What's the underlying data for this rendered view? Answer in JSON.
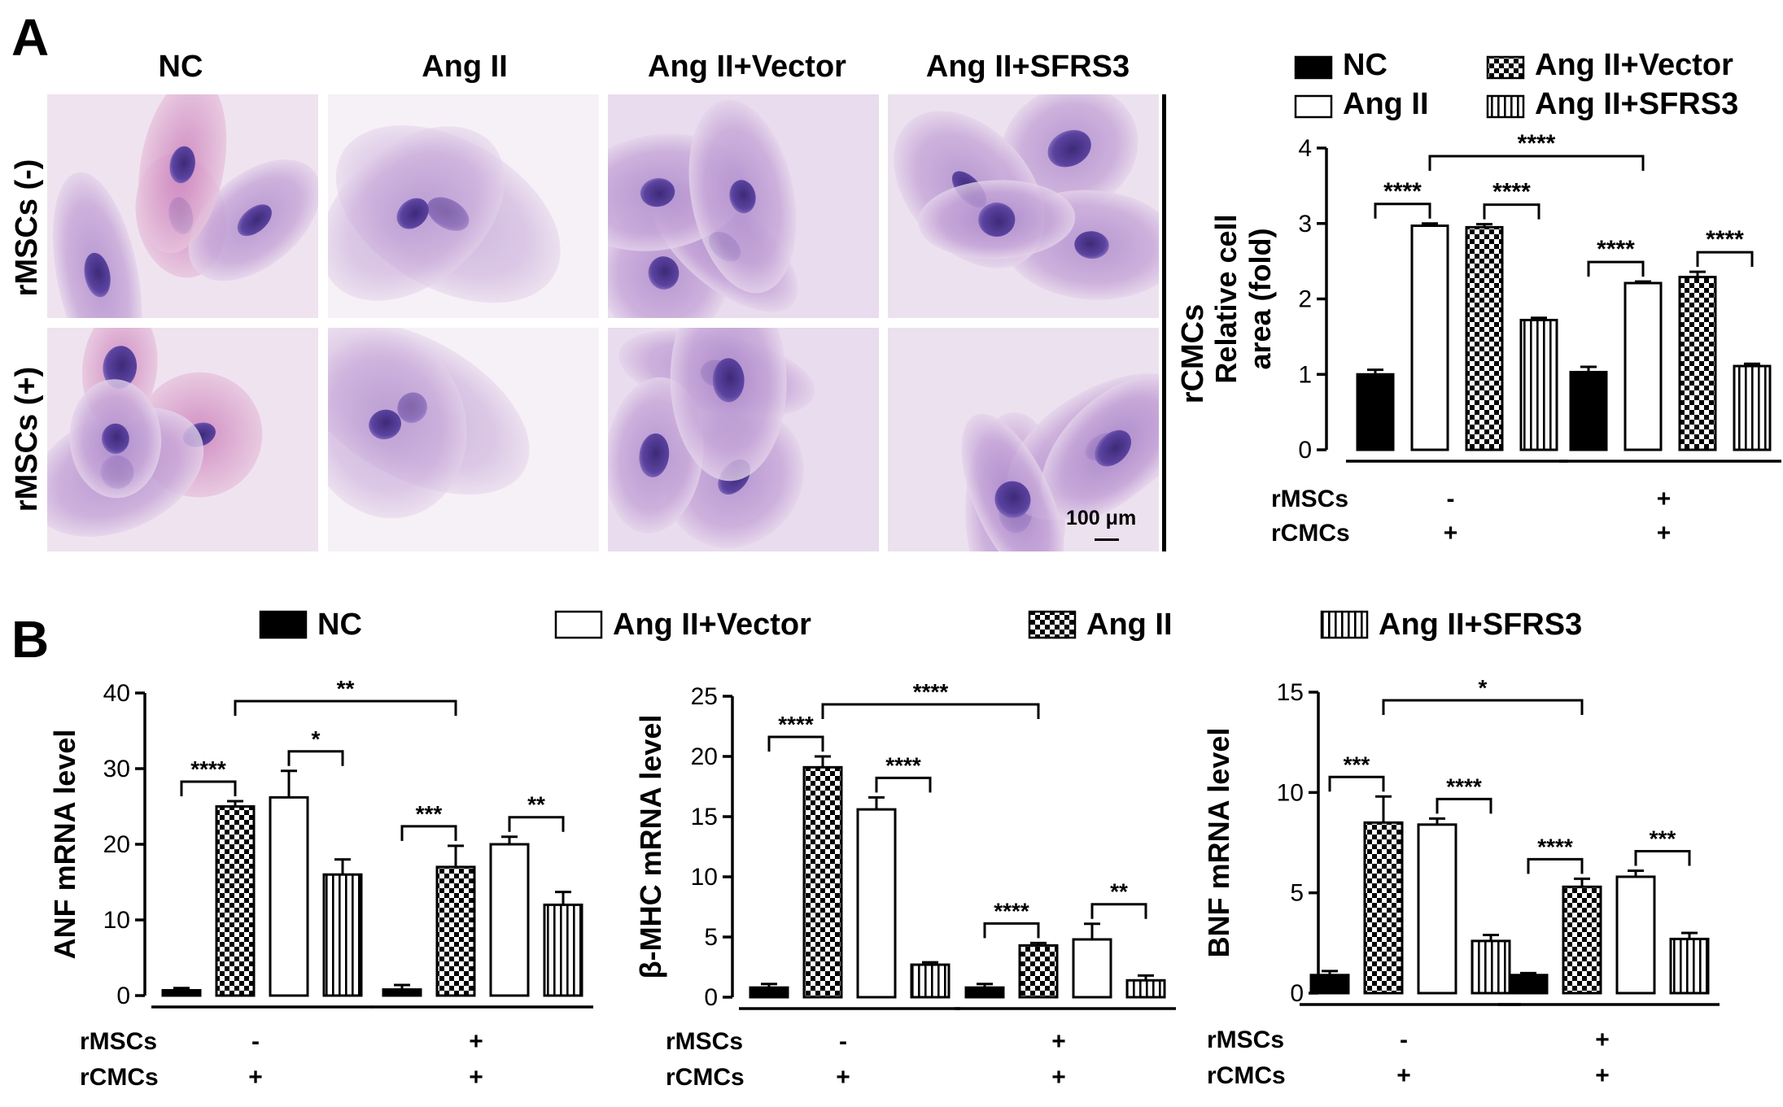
{
  "panel_a": {
    "letter": "A",
    "column_headers": [
      "NC",
      "Ang II",
      "Ang II+Vector",
      "Ang II+SFRS3"
    ],
    "row_labels": [
      "rMSCs (-)",
      "rMSCs (+)"
    ],
    "side_label": "rCMCs",
    "scale_bar": "100 μm"
  },
  "panel_b": {
    "letter": "B"
  },
  "colors": {
    "black": "#000000",
    "white": "#ffffff",
    "stain_bg": "#efe6f0",
    "stain_cell": "#b98fcc",
    "stain_nucleus": "#5a3a94"
  },
  "chart_data": [
    {
      "id": "area",
      "type": "bar",
      "ylabel": "Relative cell\narea (fold)",
      "ylim": [
        0,
        4
      ],
      "yticks": [
        0,
        1,
        2,
        3,
        4
      ],
      "legend": [
        "NC",
        "Ang II",
        "Ang II+Vector",
        "Ang II+SFRS3"
      ],
      "legend_patterns": [
        "black",
        "white",
        "checker",
        "vstripes"
      ],
      "bar_patterns": [
        "black",
        "white",
        "checker",
        "vstripes"
      ],
      "series": [
        {
          "values": [
            1.0,
            2.97,
            2.95,
            1.72
          ],
          "errors": [
            0.06,
            0.03,
            0.04,
            0.03
          ]
        },
        {
          "values": [
            1.03,
            2.21,
            2.29,
            1.11
          ],
          "errors": [
            0.07,
            0.02,
            0.07,
            0.03
          ]
        }
      ],
      "group_labels": {
        "rMSCs": [
          "-",
          "+"
        ],
        "rCMCs": [
          "+",
          "+"
        ]
      },
      "annotations": [
        {
          "from": [
            0,
            0
          ],
          "to": [
            0,
            1
          ],
          "label": "****"
        },
        {
          "from": [
            0,
            2
          ],
          "to": [
            0,
            3
          ],
          "label": "****"
        },
        {
          "from": [
            0,
            1
          ],
          "to": [
            1,
            1
          ],
          "label": "****"
        },
        {
          "from": [
            1,
            0
          ],
          "to": [
            1,
            1
          ],
          "label": "****"
        },
        {
          "from": [
            1,
            2
          ],
          "to": [
            1,
            3
          ],
          "label": "****"
        }
      ]
    },
    {
      "id": "anf",
      "type": "bar",
      "ylabel": "ANF mRNA level",
      "ylim": [
        0,
        40
      ],
      "yticks": [
        0,
        10,
        20,
        30,
        40
      ],
      "bar_patterns": [
        "black",
        "checker",
        "white",
        "vstripes"
      ],
      "series": [
        {
          "values": [
            0.7,
            25.0,
            26.2,
            16.0
          ],
          "errors": [
            0.3,
            0.7,
            3.5,
            2.0
          ]
        },
        {
          "values": [
            0.8,
            17.0,
            20.0,
            12.0
          ],
          "errors": [
            0.6,
            2.8,
            1.0,
            1.7
          ]
        }
      ],
      "group_labels": {
        "rMSCs": [
          "-",
          "+"
        ],
        "rCMCs": [
          "+",
          "+"
        ]
      },
      "annotations": [
        {
          "from": [
            0,
            0
          ],
          "to": [
            0,
            1
          ],
          "label": "****"
        },
        {
          "from": [
            0,
            2
          ],
          "to": [
            0,
            3
          ],
          "label": "*"
        },
        {
          "from": [
            0,
            1
          ],
          "to": [
            1,
            1
          ],
          "label": "**"
        },
        {
          "from": [
            1,
            0
          ],
          "to": [
            1,
            1
          ],
          "label": "***"
        },
        {
          "from": [
            1,
            2
          ],
          "to": [
            1,
            3
          ],
          "label": "**"
        }
      ]
    },
    {
      "id": "bmhc",
      "type": "bar",
      "ylabel": "β-MHC mRNA level",
      "ylim": [
        0,
        25
      ],
      "yticks": [
        0,
        5,
        10,
        15,
        20,
        25
      ],
      "bar_patterns": [
        "black",
        "checker",
        "white",
        "vstripes"
      ],
      "series": [
        {
          "values": [
            0.8,
            19.1,
            15.6,
            2.7
          ],
          "errors": [
            0.3,
            0.9,
            1.0,
            0.2
          ]
        },
        {
          "values": [
            0.8,
            4.3,
            4.8,
            1.4
          ],
          "errors": [
            0.3,
            0.2,
            1.3,
            0.4
          ]
        }
      ],
      "group_labels": {
        "rMSCs": [
          "-",
          "+"
        ],
        "rCMCs": [
          "+",
          "+"
        ]
      },
      "annotations": [
        {
          "from": [
            0,
            0
          ],
          "to": [
            0,
            1
          ],
          "label": "****"
        },
        {
          "from": [
            0,
            2
          ],
          "to": [
            0,
            3
          ],
          "label": "****"
        },
        {
          "from": [
            0,
            1
          ],
          "to": [
            1,
            1
          ],
          "label": "****"
        },
        {
          "from": [
            1,
            0
          ],
          "to": [
            1,
            1
          ],
          "label": "****"
        },
        {
          "from": [
            1,
            2
          ],
          "to": [
            1,
            3
          ],
          "label": "**"
        }
      ]
    },
    {
      "id": "bnf",
      "type": "bar",
      "ylabel": "BNF mRNA level",
      "ylim": [
        0,
        15
      ],
      "yticks": [
        0,
        5,
        10,
        15
      ],
      "bar_patterns": [
        "black",
        "checker",
        "white",
        "vstripes"
      ],
      "series": [
        {
          "values": [
            0.9,
            8.5,
            8.4,
            2.6
          ],
          "errors": [
            0.2,
            1.3,
            0.3,
            0.3
          ]
        },
        {
          "values": [
            0.9,
            5.3,
            5.8,
            2.7
          ],
          "errors": [
            0.1,
            0.4,
            0.3,
            0.3
          ]
        }
      ],
      "group_labels": {
        "rMSCs": [
          "-",
          "+"
        ],
        "rCMCs": [
          "+",
          "+"
        ]
      },
      "annotations": [
        {
          "from": [
            0,
            0
          ],
          "to": [
            0,
            1
          ],
          "label": "***"
        },
        {
          "from": [
            0,
            2
          ],
          "to": [
            0,
            3
          ],
          "label": "****"
        },
        {
          "from": [
            0,
            1
          ],
          "to": [
            1,
            1
          ],
          "label": "*"
        },
        {
          "from": [
            1,
            0
          ],
          "to": [
            1,
            1
          ],
          "label": "****"
        },
        {
          "from": [
            1,
            2
          ],
          "to": [
            1,
            3
          ],
          "label": "***"
        }
      ]
    }
  ],
  "legend_b": {
    "entries": [
      "NC",
      "Ang II+Vector",
      "Ang II",
      "Ang II+SFRS3"
    ],
    "patterns": [
      "black",
      "white",
      "checker",
      "vstripes"
    ]
  },
  "group_row_labels": [
    "rMSCs",
    "rCMCs"
  ]
}
